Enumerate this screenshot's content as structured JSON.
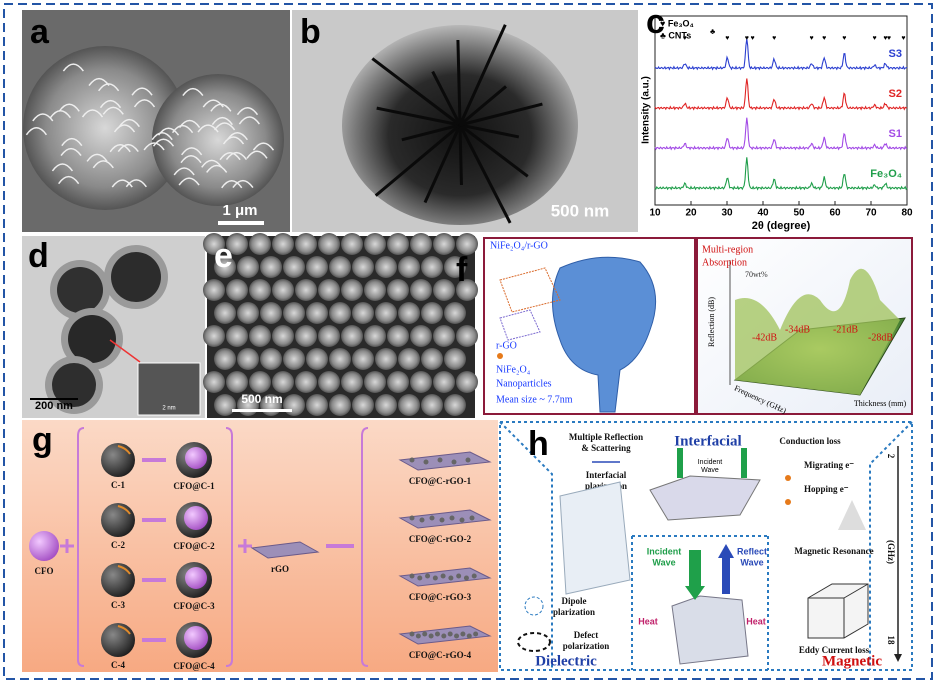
{
  "panel_a": {
    "label": "a",
    "scale_bar": "1 μm"
  },
  "panel_b": {
    "label": "b",
    "scale_bar": "500 nm"
  },
  "panel_c": {
    "label": "c",
    "chart_data": {
      "type": "line",
      "x_label": "2θ (degree)",
      "y_label": "Intensity (a.u.)",
      "xlim": [
        10,
        80
      ],
      "xticks": [
        10,
        20,
        30,
        40,
        50,
        60,
        70,
        80
      ],
      "legend": [
        "♥ Fe₃O₄",
        "♣ CNTs"
      ],
      "peak_positions": [
        18.3,
        30.1,
        35.5,
        43.1,
        53.5,
        57.0,
        62.6,
        71.0,
        74.0
      ],
      "peak_heights": [
        0.15,
        0.35,
        1.0,
        0.3,
        0.15,
        0.35,
        0.5,
        0.1,
        0.15
      ],
      "fe3o4_markers": [
        18.3,
        30.1,
        35.5,
        37.1,
        43.1,
        53.5,
        57.0,
        62.6,
        71.0,
        74.0,
        75.0,
        79.0
      ],
      "cnt_markers": [
        26.0
      ],
      "series": [
        {
          "name": "S3",
          "color": "#2b3fd0"
        },
        {
          "name": "S2",
          "color": "#e02424"
        },
        {
          "name": "S1",
          "color": "#a24ae6"
        },
        {
          "name": "Fe₃O₄",
          "color": "#1f9e4a"
        }
      ]
    }
  },
  "panel_d": {
    "label": "d",
    "scale_bar": "200 nm",
    "inset_scale": "2 nm"
  },
  "panel_e": {
    "label": "e",
    "scale_bar": "500 nm"
  },
  "panel_f": {
    "label": "f",
    "left": {
      "title": "NiFe₂O₄/r-GO",
      "rgo": "r-GO",
      "np1": "NiFe₂O₄",
      "np2": "Nanoparticles",
      "size": "Mean size ~ 7.7nm"
    },
    "right": {
      "title1": "Multi-region",
      "title2": "Absorption",
      "wt": "70wt%",
      "z_label": "Reflection (dB)",
      "x_label": "Frequency (GHz)",
      "y_label": "Thickness (mm)",
      "peaks": [
        "-42dB",
        "-34dB",
        "-21dB",
        "-28dB"
      ]
    }
  },
  "panel_g": {
    "label": "g",
    "core": "CFO",
    "rgo": "rGO",
    "shells": [
      "C-1",
      "C-2",
      "C-3",
      "C-4"
    ],
    "filled": [
      "CFO@C-1",
      "CFO@C-2",
      "CFO@C-3",
      "CFO@C-4"
    ],
    "products": [
      "CFO@C-rGO-1",
      "CFO@C-rGO-2",
      "CFO@C-rGO-3",
      "CFO@C-rGO-4"
    ]
  },
  "panel_h": {
    "label": "h",
    "multiple": [
      "Multiple Reflection",
      "& Scattering"
    ],
    "interfacial": "Interfacial",
    "conduction": "Conduction loss",
    "int_pol": [
      "Interfacial",
      "plarization"
    ],
    "migrating": "Migrating e⁻",
    "hopping": "Hopping e⁻",
    "incident_small": [
      "Incident",
      "Wave"
    ],
    "dipole": [
      "Dipole",
      "plarization"
    ],
    "defect": [
      "Defect",
      "polarization"
    ],
    "incident": [
      "Incident",
      "Wave"
    ],
    "reflect": [
      "Reflect",
      "Wave"
    ],
    "heat_left": "Heat",
    "heat_right": "Heat",
    "resonance": "Magnetic Resonance",
    "eddy": "Eddy Current loss",
    "dielectric": "Dielectric",
    "magnetic": "Magnetic",
    "freq_low": "2",
    "freq_unit": "(GHz)",
    "freq_high": "18"
  }
}
